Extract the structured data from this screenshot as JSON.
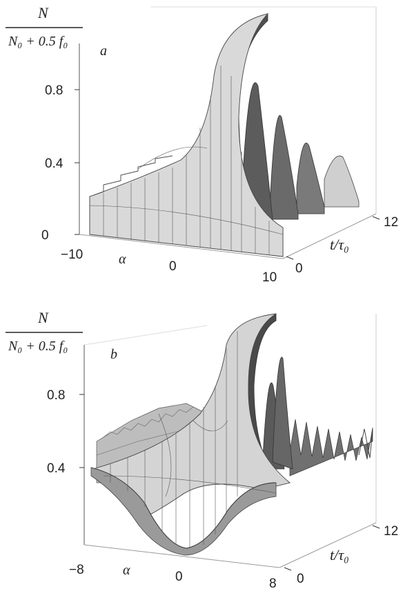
{
  "panels": [
    {
      "id": "a",
      "panel_label": "a",
      "zlabel": {
        "numerator": "N",
        "denominator": "N₀ + 0.5 f₀"
      },
      "z_ticks": [
        "0",
        "0.4",
        "0.8"
      ],
      "alpha_label": "α",
      "alpha_ticks": [
        "−10",
        "0",
        "10"
      ],
      "t_label": "t/τ₀",
      "t_ticks": [
        "0",
        "12"
      ]
    },
    {
      "id": "b",
      "panel_label": "b",
      "zlabel": {
        "numerator": "N",
        "denominator": "N₀ + 0.5 f₀"
      },
      "z_ticks": [
        "0.4",
        "0.8"
      ],
      "alpha_label": "α",
      "alpha_ticks": [
        "−8",
        "0",
        "8"
      ],
      "t_label": "t/τ₀",
      "t_ticks": [
        "0",
        "12"
      ]
    }
  ],
  "chart_data": [
    {
      "type": "surface",
      "panel": "a",
      "x_axis": "α",
      "y_axis": "t/τ₀",
      "z_axis": "N/(N₀ + 0.5 f₀)",
      "alpha_range": [
        -10,
        10
      ],
      "t_range": [
        0,
        12
      ],
      "z_ticks": [
        0,
        0.4,
        0.8
      ],
      "peaks_at_alpha_0": [
        1.0,
        0.78,
        0.62,
        0.5,
        0.42
      ],
      "baseline_near_t0": 0.15
    },
    {
      "type": "surface",
      "panel": "b",
      "x_axis": "α",
      "y_axis": "t/τ₀",
      "z_axis": "N/(N₀ + 0.5 f₀)",
      "alpha_range": [
        -8,
        8
      ],
      "t_range": [
        0,
        12
      ],
      "z_ticks": [
        0.4,
        0.8
      ],
      "peaks_at_alpha_0": [
        1.0,
        0.82,
        0.7,
        0.6,
        0.55,
        0.5,
        0.48,
        0.46,
        0.45,
        0.44,
        0.43,
        0.42
      ],
      "minimum_near_t0": 0.1
    }
  ],
  "colors": {
    "surface": "#d6d6d6",
    "surface_dark": "#6e6e6e",
    "mesh": "#444444",
    "axis": "#333333"
  }
}
